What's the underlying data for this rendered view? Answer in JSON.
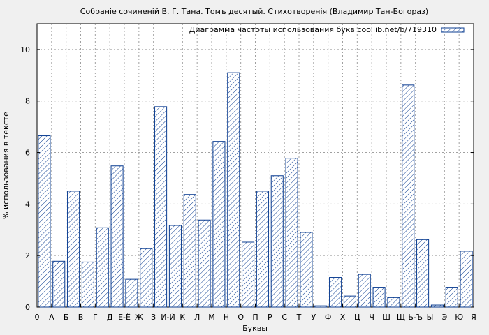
{
  "chart_data": {
    "type": "bar",
    "title": "Собраніе сочиненій В. Г. Тана. Томъ десятый. Стихотворенія (Владимир Тан-Богораз)",
    "xlabel": "Буквы",
    "ylabel": "% использования в тексте",
    "ylim": [
      0,
      11
    ],
    "yticks": [
      0,
      2,
      4,
      6,
      8,
      10
    ],
    "x_origin_label": "0",
    "grid": true,
    "legend": {
      "position": "top-right",
      "label": "Диаграмма частоты использования букв coollib.net/b/719310"
    },
    "categories": [
      "А",
      "Б",
      "В",
      "Г",
      "Д",
      "Е-Ё",
      "Ж",
      "З",
      "И-Й",
      "К",
      "Л",
      "М",
      "Н",
      "О",
      "П",
      "Р",
      "С",
      "Т",
      "У",
      "Ф",
      "Х",
      "Ц",
      "Ч",
      "Ш",
      "Щ",
      "Ь-Ъ",
      "Ы",
      "Э",
      "Ю",
      "Я"
    ],
    "series": [
      {
        "name": "Диаграмма частоты использования букв coollib.net/b/719310",
        "values": [
          6.65,
          1.78,
          4.5,
          1.75,
          3.08,
          5.48,
          1.08,
          2.27,
          7.78,
          3.17,
          4.37,
          3.38,
          6.43,
          9.1,
          2.52,
          4.5,
          5.1,
          5.78,
          2.9,
          0.05,
          1.15,
          0.43,
          1.27,
          0.77,
          0.37,
          8.62,
          2.62,
          0.08,
          0.77,
          2.17
        ]
      }
    ],
    "colors": {
      "bar_stroke": "#0b3d91",
      "hatch": "#0b3d91",
      "bar_fill": "#ffffff",
      "grid": "#a0a0a0",
      "plot_bg": "#ffffff",
      "page_bg": "#f0f0f0"
    }
  }
}
